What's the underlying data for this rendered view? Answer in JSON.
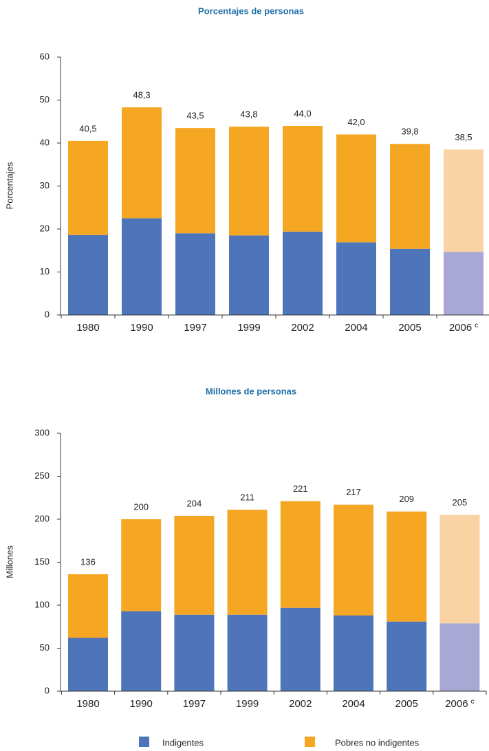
{
  "chart_data": [
    {
      "type": "stacked_bar",
      "title": "Porcentajes de personas",
      "y_label": "Porcentajes",
      "categories": [
        "1980",
        "1990",
        "1997",
        "1999",
        "2002",
        "2004",
        "2005",
        "2006"
      ],
      "category_superscripts": [
        null,
        null,
        null,
        null,
        null,
        null,
        null,
        "c"
      ],
      "ylim": [
        0,
        60
      ],
      "yticks": [
        0,
        10,
        20,
        30,
        40,
        50,
        60
      ],
      "series": [
        {
          "name": "Indigentes",
          "color": "#4e74b9",
          "colors": [
            "#4e74b9",
            "#4e74b9",
            "#4e74b9",
            "#4e74b9",
            "#4e74b9",
            "#4e74b9",
            "#4e74b9",
            "#a9a8d4"
          ],
          "values": [
            18.6,
            22.5,
            19.0,
            18.5,
            19.4,
            16.9,
            15.4,
            14.7
          ],
          "value_labels": [
            "18,6",
            "22,5",
            "19,0",
            "18,5",
            "19,4",
            "16,9",
            "15,4",
            "14,7"
          ]
        },
        {
          "name": "Pobres no indigentes",
          "color": "#f5a623",
          "colors": [
            "#f5a623",
            "#f5a623",
            "#f5a623",
            "#f5a623",
            "#f5a623",
            "#f5a623",
            "#f5a623",
            "#f9d3a4"
          ],
          "values": [
            21.9,
            25.8,
            24.5,
            25.3,
            24.6,
            25.1,
            24.4,
            23.8
          ]
        }
      ],
      "totals": [
        40.5,
        48.3,
        43.5,
        43.8,
        44.0,
        42.0,
        39.8,
        38.5
      ],
      "total_labels": [
        "40,5",
        "48,3",
        "43,5",
        "43,8",
        "44,0",
        "42,0",
        "39,8",
        "38,5"
      ]
    },
    {
      "type": "stacked_bar",
      "title": "Millones de personas",
      "y_label": "Millones",
      "categories": [
        "1980",
        "1990",
        "1997",
        "1999",
        "2002",
        "2004",
        "2005",
        "2006"
      ],
      "category_superscripts": [
        null,
        null,
        null,
        null,
        null,
        null,
        null,
        "c"
      ],
      "ylim": [
        0,
        300
      ],
      "yticks": [
        0,
        50,
        100,
        150,
        200,
        250,
        300
      ],
      "series": [
        {
          "name": "Indigentes",
          "color": "#4e74b9",
          "colors": [
            "#4e74b9",
            "#4e74b9",
            "#4e74b9",
            "#4e74b9",
            "#4e74b9",
            "#4e74b9",
            "#4e74b9",
            "#a9a8d4"
          ],
          "values": [
            62,
            93,
            89,
            89,
            97,
            88,
            81,
            79
          ]
        },
        {
          "name": "Pobres no indigentes",
          "color": "#f5a623",
          "colors": [
            "#f5a623",
            "#f5a623",
            "#f5a623",
            "#f5a623",
            "#f5a623",
            "#f5a623",
            "#f5a623",
            "#f9d3a4"
          ],
          "values": [
            74,
            107,
            115,
            122,
            124,
            129,
            128,
            126
          ]
        }
      ],
      "totals": [
        136,
        200,
        204,
        211,
        221,
        217,
        209,
        205
      ]
    }
  ]
}
